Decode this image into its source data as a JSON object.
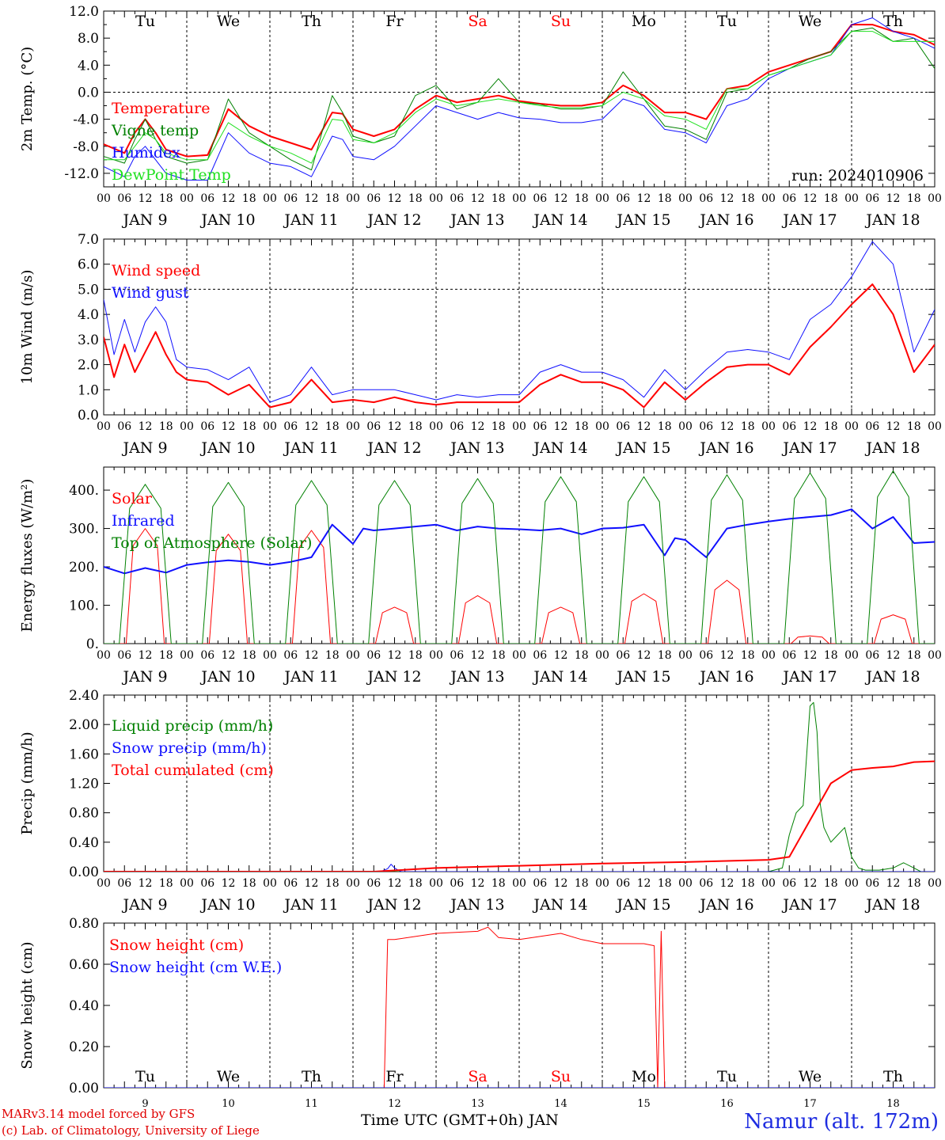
{
  "page": {
    "run_label": "run: 2024010906",
    "footer_model": "MARv3.14 model forced by GFS",
    "footer_lab": "(c) Lab. of Climatology, University of Liege",
    "footer_axis": "Time UTC (GMT+0h) JAN",
    "footer_station": "Namur (alt. 172m)"
  },
  "colors": {
    "red": "#ff0000",
    "blue": "#1010ff",
    "green": "#008000",
    "lightgreen": "#20e020",
    "grid": "#000000",
    "weekend": "#ff0000"
  },
  "time_axis": {
    "days": [
      "Tu",
      "We",
      "Th",
      "Fr",
      "Sa",
      "Su",
      "Mo",
      "Tu",
      "We",
      "Th"
    ],
    "weekend_days": [
      4,
      5
    ],
    "date_labels": [
      "JAN  9",
      "JAN 10",
      "JAN 11",
      "JAN 12",
      "JAN 13",
      "JAN 14",
      "JAN 15",
      "JAN 16",
      "JAN 17",
      "JAN 18"
    ],
    "hour_ticks": [
      "00",
      "06",
      "12",
      "18"
    ],
    "bottom_day_numbers": [
      "9",
      "10",
      "11",
      "12",
      "13",
      "14",
      "15",
      "16",
      "17",
      "18"
    ]
  },
  "chart_data": [
    {
      "type": "line",
      "id": "temp",
      "ylabel": "2m Temp. (°C)",
      "ylim": [
        -14,
        12
      ],
      "yticks": [
        -12,
        -8,
        -4,
        0,
        4,
        8,
        12
      ],
      "ytick_labels": [
        "-12.0",
        "-8.0",
        "-4.0",
        "0.0",
        "4.0",
        "8.0",
        "12.0"
      ],
      "ref_lines": [
        0
      ],
      "x_unit": "hours since JAN 9 00 UTC",
      "series": [
        {
          "name": "Temperature",
          "color": "red",
          "width": 2,
          "x": [
            0,
            6,
            9,
            12,
            15,
            18,
            24,
            30,
            36,
            42,
            48,
            54,
            60,
            66,
            69,
            72,
            78,
            84,
            90,
            96,
            102,
            108,
            114,
            120,
            126,
            132,
            138,
            144,
            150,
            156,
            162,
            168,
            174,
            180,
            186,
            192,
            198,
            204,
            210,
            216,
            222,
            228,
            234,
            240
          ],
          "y": [
            -7.7,
            -9,
            -6,
            -4,
            -6,
            -8.5,
            -9.5,
            -9.3,
            -2.5,
            -5,
            -6.5,
            -7.5,
            -8.5,
            -3,
            -3.2,
            -5.5,
            -6.5,
            -5.5,
            -2.5,
            -0.5,
            -1.5,
            -1,
            -0.5,
            -1.3,
            -1.7,
            -2,
            -2,
            -1.5,
            1,
            -0.5,
            -3,
            -3,
            -4,
            0.5,
            1,
            3,
            4,
            5,
            6,
            10,
            10,
            9,
            8.5,
            7
          ]
        },
        {
          "name": "Vigne temp",
          "color": "green",
          "width": 1,
          "x": [
            0,
            6,
            9,
            12,
            15,
            18,
            24,
            30,
            36,
            42,
            48,
            54,
            60,
            66,
            69,
            72,
            78,
            84,
            90,
            96,
            102,
            108,
            114,
            120,
            126,
            132,
            138,
            144,
            150,
            156,
            162,
            168,
            174,
            180,
            186,
            192,
            198,
            204,
            210,
            216,
            222,
            228,
            234,
            240
          ],
          "y": [
            -9.5,
            -10.5,
            -7,
            -4,
            -7,
            -9.5,
            -10.5,
            -10,
            -1,
            -6,
            -8,
            -10,
            -11.5,
            -0.5,
            -3,
            -6.5,
            -7.5,
            -6.5,
            -0.5,
            1,
            -2.5,
            -1.5,
            2,
            -1.5,
            -1.8,
            -2.5,
            -2.5,
            -2,
            3,
            -1,
            -5,
            -5.5,
            -7,
            0,
            0.5,
            2.5,
            3.5,
            5,
            6,
            9,
            9.5,
            7.5,
            8,
            3.5
          ]
        },
        {
          "name": "Humidex",
          "color": "blue",
          "width": 1,
          "x": [
            0,
            6,
            9,
            12,
            15,
            18,
            24,
            30,
            36,
            42,
            48,
            54,
            60,
            66,
            69,
            72,
            78,
            84,
            90,
            96,
            102,
            108,
            114,
            120,
            126,
            132,
            138,
            144,
            150,
            156,
            162,
            168,
            174,
            180,
            186,
            192,
            198,
            204,
            210,
            216,
            222,
            228,
            234,
            240
          ],
          "y": [
            -11,
            -12.5,
            -9.5,
            -8,
            -10,
            -12,
            -13,
            -13,
            -6,
            -9,
            -10.5,
            -11,
            -12.5,
            -6.5,
            -7,
            -9.5,
            -10,
            -8,
            -5,
            -2,
            -3,
            -4,
            -3,
            -3.8,
            -4,
            -4.5,
            -4.5,
            -4,
            -1,
            -2,
            -5.5,
            -6,
            -7.5,
            -2,
            -1,
            2,
            3.5,
            4.5,
            5.5,
            10,
            11,
            9,
            8,
            6.5
          ]
        },
        {
          "name": "DewPoint Temp",
          "color": "lightgreen",
          "width": 1,
          "x": [
            0,
            6,
            9,
            12,
            15,
            18,
            24,
            30,
            36,
            42,
            48,
            54,
            60,
            66,
            69,
            72,
            78,
            84,
            90,
            96,
            102,
            108,
            114,
            120,
            126,
            132,
            138,
            144,
            150,
            156,
            162,
            168,
            174,
            180,
            186,
            192,
            198,
            204,
            210,
            216,
            222,
            228,
            234,
            240
          ],
          "y": [
            -10,
            -10,
            -8,
            -6,
            -7,
            -9,
            -10,
            -10,
            -4.5,
            -6.5,
            -8,
            -9,
            -10.5,
            -4,
            -4.2,
            -7,
            -7.5,
            -6,
            -3,
            -1,
            -2,
            -1.5,
            -1,
            -1.5,
            -2,
            -2.3,
            -2.3,
            -2,
            0,
            -1,
            -3.5,
            -4,
            -5.5,
            0.5,
            0.5,
            2.5,
            3.5,
            4.5,
            5.5,
            9,
            9,
            7.5,
            7.5,
            7.5
          ]
        }
      ]
    },
    {
      "type": "line",
      "id": "wind",
      "ylabel": "10m Wind (m/s)",
      "ylim": [
        0,
        7
      ],
      "yticks": [
        0,
        1,
        2,
        3,
        4,
        5,
        6,
        7
      ],
      "ytick_labels": [
        "0.0",
        "1.0",
        "2.0",
        "3.0",
        "4.0",
        "5.0",
        "6.0",
        "7.0"
      ],
      "ref_lines": [
        5
      ],
      "x_unit": "hours since JAN 9 00 UTC",
      "series": [
        {
          "name": "Wind speed",
          "color": "red",
          "width": 2,
          "x": [
            0,
            3,
            6,
            9,
            12,
            15,
            18,
            21,
            24,
            30,
            36,
            42,
            48,
            54,
            60,
            66,
            72,
            78,
            84,
            90,
            96,
            102,
            108,
            114,
            120,
            126,
            132,
            138,
            144,
            150,
            156,
            162,
            168,
            174,
            180,
            186,
            192,
            198,
            204,
            210,
            216,
            222,
            228,
            234,
            240
          ],
          "y": [
            3.1,
            1.5,
            2.8,
            1.7,
            2.5,
            3.3,
            2.4,
            1.7,
            1.4,
            1.3,
            0.8,
            1.2,
            0.3,
            0.5,
            1.4,
            0.5,
            0.6,
            0.5,
            0.7,
            0.5,
            0.4,
            0.5,
            0.5,
            0.5,
            0.5,
            1.2,
            1.6,
            1.3,
            1.3,
            1.0,
            0.3,
            1.3,
            0.6,
            1.3,
            1.9,
            2.0,
            2.0,
            1.6,
            2.7,
            3.5,
            4.4,
            5.2,
            4.0,
            1.7,
            2.8
          ]
        },
        {
          "name": "Wind gust",
          "color": "blue",
          "width": 1,
          "x": [
            0,
            3,
            6,
            9,
            12,
            15,
            18,
            21,
            24,
            30,
            36,
            42,
            48,
            54,
            60,
            66,
            72,
            78,
            84,
            90,
            96,
            102,
            108,
            114,
            120,
            126,
            132,
            138,
            144,
            150,
            156,
            162,
            168,
            174,
            180,
            186,
            192,
            198,
            204,
            210,
            216,
            222,
            228,
            234,
            240
          ],
          "y": [
            4.6,
            2.4,
            3.8,
            2.5,
            3.7,
            4.3,
            3.7,
            2.2,
            1.9,
            1.8,
            1.4,
            1.9,
            0.5,
            0.8,
            1.9,
            0.8,
            1.0,
            1.0,
            1.0,
            0.8,
            0.6,
            0.8,
            0.7,
            0.8,
            0.8,
            1.7,
            2.0,
            1.7,
            1.7,
            1.4,
            0.7,
            1.8,
            1.0,
            1.8,
            2.5,
            2.6,
            2.5,
            2.2,
            3.8,
            4.4,
            5.5,
            6.9,
            6.0,
            2.5,
            4.2
          ]
        }
      ]
    },
    {
      "type": "line",
      "id": "flux",
      "ylabel": "Energy fluxes (W/m²)",
      "ylim": [
        0,
        460
      ],
      "yticks": [
        0,
        100,
        200,
        300,
        400
      ],
      "ytick_labels": [
        "0.",
        "100.",
        "200.",
        "300.",
        "400."
      ],
      "ref_lines": [],
      "x_unit": "hours since JAN 9 00 UTC",
      "daily_peaks": {
        "solar": [
          300,
          285,
          295,
          95,
          125,
          95,
          130,
          165,
          20,
          75
        ],
        "toa": [
          415,
          420,
          425,
          425,
          430,
          435,
          435,
          440,
          445,
          450
        ]
      },
      "series": [
        {
          "name": "Solar",
          "color": "red",
          "width": 1
        },
        {
          "name": "Infrared",
          "color": "blue",
          "width": 2,
          "x": [
            0,
            6,
            12,
            18,
            24,
            30,
            36,
            42,
            48,
            54,
            60,
            66,
            72,
            75,
            78,
            84,
            90,
            96,
            102,
            108,
            114,
            120,
            126,
            132,
            138,
            144,
            150,
            156,
            162,
            165,
            168,
            174,
            180,
            186,
            192,
            198,
            204,
            210,
            216,
            222,
            228,
            234,
            240
          ],
          "y": [
            200,
            183,
            197,
            185,
            205,
            212,
            217,
            213,
            205,
            213,
            225,
            310,
            260,
            300,
            295,
            300,
            305,
            310,
            295,
            305,
            300,
            298,
            295,
            300,
            285,
            300,
            302,
            310,
            230,
            275,
            270,
            225,
            300,
            310,
            318,
            325,
            330,
            335,
            350,
            300,
            330,
            262,
            265
          ]
        },
        {
          "name": "Top of Atmosphere (Solar)",
          "color": "green",
          "width": 1
        }
      ]
    },
    {
      "type": "line",
      "id": "precip",
      "ylabel": "Precip (mm/h)",
      "ylim": [
        0,
        2.4
      ],
      "yticks": [
        0,
        0.4,
        0.8,
        1.2,
        1.6,
        2.0,
        2.4
      ],
      "ytick_labels": [
        "0.00",
        "0.40",
        "0.80",
        "1.20",
        "1.60",
        "2.00",
        "2.40"
      ],
      "ref_lines": [],
      "x_unit": "hours since JAN 9 00 UTC",
      "series": [
        {
          "name": "Liquid precip (mm/h)",
          "color": "green",
          "width": 1,
          "x": [
            0,
            192,
            196,
            198,
            200,
            202,
            204,
            205,
            206,
            207,
            208,
            210,
            212,
            214,
            216,
            218,
            220,
            224,
            228,
            231,
            234,
            236,
            240
          ],
          "y": [
            0,
            0,
            0.05,
            0.5,
            0.8,
            0.9,
            2.25,
            2.3,
            1.9,
            0.9,
            0.6,
            0.4,
            0.5,
            0.6,
            0.2,
            0.05,
            0.02,
            0.02,
            0.05,
            0.12,
            0.05,
            0,
            0
          ]
        },
        {
          "name": "Snow precip (mm/h)",
          "color": "blue",
          "width": 1,
          "x": [
            0,
            80,
            82,
            83,
            84,
            85,
            86,
            240
          ],
          "y": [
            0,
            0,
            0.04,
            0.1,
            0.05,
            0.02,
            0,
            0
          ]
        },
        {
          "name": "Total cumulated (cm)",
          "color": "red",
          "width": 2,
          "x": [
            0,
            78,
            96,
            120,
            144,
            168,
            192,
            198,
            204,
            210,
            216,
            222,
            228,
            234,
            240
          ],
          "y": [
            0,
            0,
            0.05,
            0.08,
            0.11,
            0.13,
            0.16,
            0.2,
            0.7,
            1.2,
            1.38,
            1.41,
            1.43,
            1.49,
            1.5
          ]
        }
      ]
    },
    {
      "type": "line",
      "id": "snow",
      "ylabel": "Snow height (cm)",
      "ylim": [
        0,
        0.8
      ],
      "yticks": [
        0,
        0.2,
        0.4,
        0.6,
        0.8
      ],
      "ytick_labels": [
        "0.00",
        "0.20",
        "0.40",
        "0.60",
        "0.80"
      ],
      "ref_lines": [],
      "x_unit": "hours since JAN 9 00 UTC",
      "series": [
        {
          "name": "Snow height (cm)",
          "color": "red",
          "width": 1,
          "x": [
            0,
            81,
            82,
            84,
            96,
            108,
            111,
            114,
            120,
            132,
            138,
            144,
            156,
            159,
            160,
            161,
            162,
            240
          ],
          "y": [
            0,
            0,
            0.72,
            0.72,
            0.75,
            0.76,
            0.78,
            0.73,
            0.72,
            0.75,
            0.72,
            0.7,
            0.7,
            0.69,
            0,
            0.76,
            0,
            0
          ]
        },
        {
          "name": "Snow height (cm W.E.)",
          "color": "blue",
          "width": 1,
          "x": [
            0,
            240
          ],
          "y": [
            0,
            0
          ]
        }
      ]
    }
  ]
}
